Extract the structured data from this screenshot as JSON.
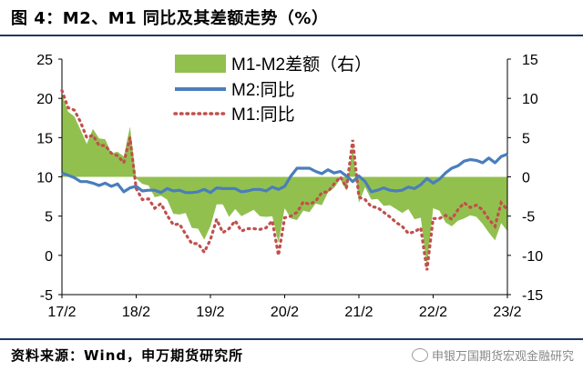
{
  "header": {
    "title": "图 4：M2、M1 同比及其差额走势（%）"
  },
  "footer": {
    "source": "资料来源：Wind，申万期货研究所",
    "watermark": "申银万国期货宏观金融研究"
  },
  "chart_data": {
    "type": "line",
    "x_ticks": [
      "17/2",
      "18/2",
      "19/2",
      "20/2",
      "21/2",
      "22/2",
      "23/2"
    ],
    "x_range": [
      "2017-02",
      "2023-02"
    ],
    "ylim_left": [
      -5,
      25
    ],
    "yticks_left": [
      -5,
      0,
      5,
      10,
      15,
      20,
      25
    ],
    "ylim_right": [
      -15,
      15
    ],
    "yticks_right": [
      -15,
      -10,
      -5,
      0,
      5,
      10,
      15
    ],
    "legend_position": "top-center",
    "grid": false,
    "months": [
      "2017-02",
      "2017-03",
      "2017-04",
      "2017-05",
      "2017-06",
      "2017-07",
      "2017-08",
      "2017-09",
      "2017-10",
      "2017-11",
      "2017-12",
      "2018-01",
      "2018-02",
      "2018-03",
      "2018-04",
      "2018-05",
      "2018-06",
      "2018-07",
      "2018-08",
      "2018-09",
      "2018-10",
      "2018-11",
      "2018-12",
      "2019-01",
      "2019-02",
      "2019-03",
      "2019-04",
      "2019-05",
      "2019-06",
      "2019-07",
      "2019-08",
      "2019-09",
      "2019-10",
      "2019-11",
      "2019-12",
      "2020-01",
      "2020-02",
      "2020-03",
      "2020-04",
      "2020-05",
      "2020-06",
      "2020-07",
      "2020-08",
      "2020-09",
      "2020-10",
      "2020-11",
      "2020-12",
      "2021-01",
      "2021-02",
      "2021-03",
      "2021-04",
      "2021-05",
      "2021-06",
      "2021-07",
      "2021-08",
      "2021-09",
      "2021-10",
      "2021-11",
      "2021-12",
      "2022-01",
      "2022-02",
      "2022-03",
      "2022-04",
      "2022-05",
      "2022-06",
      "2022-07",
      "2022-08",
      "2022-09",
      "2022-10",
      "2022-11",
      "2022-12",
      "2023-01",
      "2023-02"
    ],
    "series": [
      {
        "name": "M1-M2差额（右）",
        "type": "area",
        "axis": "right",
        "color": "#92c04f",
        "values": [
          10.5,
          8.3,
          7.7,
          6.0,
          4.2,
          6.1,
          4.9,
          4.8,
          3.0,
          3.2,
          2.6,
          6.4,
          -0.2,
          -0.9,
          -1.1,
          -2.6,
          -2.4,
          -2.9,
          -4.7,
          -4.8,
          -4.6,
          -6.5,
          -6.6,
          -8.0,
          -6.3,
          -3.5,
          -3.5,
          -5.1,
          -4.1,
          -5.0,
          -4.6,
          -4.2,
          -5.0,
          -5.1,
          -5.0,
          -8.4,
          -4.0,
          -5.3,
          -5.5,
          -4.3,
          -4.5,
          -3.4,
          -3.6,
          -2.0,
          -1.4,
          -0.3,
          -1.8,
          4.0,
          -3.3,
          -1.3,
          -2.9,
          -2.8,
          -3.7,
          -3.6,
          -4.1,
          -4.6,
          -4.1,
          -5.4,
          -5.2,
          -11.4,
          -4.0,
          -4.3,
          -5.8,
          -6.3,
          -5.6,
          -5.3,
          -4.9,
          -5.1,
          -6.0,
          -7.1,
          -8.1,
          -5.9,
          -6.9
        ]
      },
      {
        "name": "M2:同比",
        "type": "line",
        "axis": "left",
        "color": "#4a7ebb",
        "values": [
          10.5,
          10.2,
          9.9,
          9.4,
          9.4,
          9.2,
          8.9,
          9.2,
          8.8,
          9.1,
          8.1,
          8.6,
          8.8,
          8.2,
          8.3,
          8.3,
          8.0,
          8.5,
          8.2,
          8.3,
          8.0,
          8.0,
          8.1,
          8.4,
          8.0,
          8.6,
          8.5,
          8.5,
          8.5,
          8.1,
          8.2,
          8.4,
          8.4,
          8.2,
          8.7,
          8.4,
          8.8,
          10.1,
          11.1,
          11.1,
          11.1,
          10.7,
          10.4,
          10.9,
          10.5,
          10.7,
          10.1,
          9.4,
          10.1,
          9.4,
          8.1,
          8.3,
          8.6,
          8.3,
          8.2,
          8.3,
          8.7,
          8.5,
          9.0,
          9.8,
          9.2,
          9.7,
          10.5,
          11.1,
          11.4,
          12.0,
          12.2,
          12.1,
          11.8,
          12.4,
          11.8,
          12.6,
          12.9
        ]
      },
      {
        "name": "M1:同比",
        "type": "line",
        "axis": "left",
        "color": "#c0504d",
        "dashed": true,
        "values": [
          21.0,
          18.8,
          18.5,
          17.0,
          15.0,
          15.3,
          14.0,
          14.0,
          13.0,
          12.7,
          11.8,
          15.0,
          8.5,
          7.1,
          7.2,
          6.0,
          6.6,
          5.1,
          3.9,
          4.0,
          2.7,
          1.5,
          1.5,
          0.4,
          2.0,
          4.6,
          2.9,
          3.4,
          4.4,
          3.1,
          3.4,
          3.4,
          3.3,
          3.5,
          4.4,
          0.0,
          4.8,
          5.0,
          5.5,
          6.8,
          6.5,
          6.9,
          8.0,
          8.1,
          9.1,
          10.0,
          8.6,
          14.7,
          7.4,
          7.1,
          6.2,
          6.1,
          5.5,
          4.9,
          4.2,
          3.7,
          2.8,
          3.0,
          3.5,
          -1.9,
          4.7,
          4.7,
          5.1,
          4.6,
          5.8,
          6.7,
          6.1,
          6.4,
          5.8,
          4.6,
          3.7,
          6.7,
          5.8
        ]
      }
    ]
  }
}
